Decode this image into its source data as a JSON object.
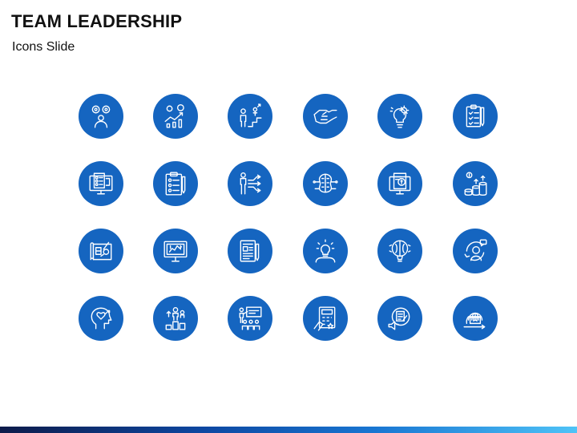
{
  "slide": {
    "title": "TEAM LEADERSHIP",
    "subtitle": "Icons Slide"
  },
  "colors": {
    "circle": "#1565c0",
    "icon_stroke": "#ffffff",
    "title": "#111111"
  },
  "icons": [
    {
      "name": "team-leader-icon"
    },
    {
      "name": "growth-chart-icon"
    },
    {
      "name": "career-steps-icon"
    },
    {
      "name": "handshake-icon"
    },
    {
      "name": "idea-gear-icon"
    },
    {
      "name": "clipboard-checklist-icon"
    },
    {
      "name": "monitor-checklist-icon"
    },
    {
      "name": "task-clipboard-icon"
    },
    {
      "name": "decision-arrows-icon"
    },
    {
      "name": "brain-network-icon"
    },
    {
      "name": "document-analysis-icon"
    },
    {
      "name": "money-growth-icon"
    },
    {
      "name": "blueprint-plan-icon"
    },
    {
      "name": "monitor-analytics-icon"
    },
    {
      "name": "report-pen-icon"
    },
    {
      "name": "lightbulb-person-icon"
    },
    {
      "name": "brain-balloon-icon"
    },
    {
      "name": "customer-support-icon"
    },
    {
      "name": "head-heart-icon"
    },
    {
      "name": "team-growth-icon"
    },
    {
      "name": "presentation-team-icon"
    },
    {
      "name": "calculator-hand-icon"
    },
    {
      "name": "digital-marketing-icon"
    },
    {
      "name": "global-shipping-icon"
    }
  ]
}
